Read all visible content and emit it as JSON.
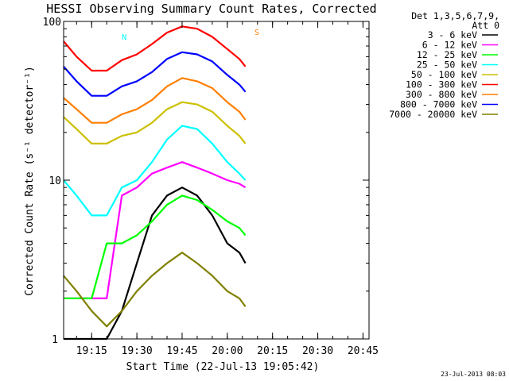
{
  "chart_data": {
    "type": "line",
    "title": "HESSI Observing Summary Count Rates, Corrected",
    "xlabel": "Start Time (22-Jul-13 19:05:42)",
    "ylabel": "Corrected Count Rate (s⁻¹ detector⁻¹)",
    "yscale": "log",
    "ylim": [
      1,
      100
    ],
    "y_ticks": [
      "1",
      "10",
      "100"
    ],
    "xlim": [
      "19:05:42",
      "20:47:00"
    ],
    "x_ticks": [
      "19:15",
      "19:30",
      "19:45",
      "20:00",
      "20:15",
      "20:30",
      "20:45"
    ],
    "legend_title": [
      "Det 1,3,5,6,7,9,",
      "Att 0"
    ],
    "legend_position": "right",
    "timestamp": "23-Jul-2013 08:03",
    "series": [
      {
        "name": "3 - 6 keV",
        "color": "#000000",
        "x": [
          "19:05:42",
          "19:10",
          "19:15",
          "19:20",
          "19:25",
          "19:30",
          "19:35",
          "19:40",
          "19:45",
          "19:50",
          "19:55",
          "20:00",
          "20:04",
          "20:06"
        ],
        "y": [
          1.0,
          1.0,
          1.0,
          1.0,
          1.5,
          3.0,
          6.0,
          8.0,
          9.0,
          8.0,
          6.0,
          4.0,
          3.5,
          3.0
        ]
      },
      {
        "name": "6 - 12 keV",
        "color": "#ff00ff",
        "x": [
          "19:05:42",
          "19:10",
          "19:15",
          "19:20",
          "19:25",
          "19:30",
          "19:35",
          "19:40",
          "19:45",
          "19:50",
          "19:55",
          "20:00",
          "20:04",
          "20:06"
        ],
        "y": [
          1.8,
          1.8,
          1.8,
          1.8,
          8.0,
          9.0,
          11.0,
          12.0,
          13.0,
          12.0,
          11.0,
          10.0,
          9.5,
          9.0
        ]
      },
      {
        "name": "12 - 25 keV",
        "color": "#00ff00",
        "x": [
          "19:05:42",
          "19:10",
          "19:15",
          "19:20",
          "19:25",
          "19:30",
          "19:35",
          "19:40",
          "19:45",
          "19:50",
          "19:55",
          "20:00",
          "20:04",
          "20:06"
        ],
        "y": [
          1.8,
          1.8,
          1.8,
          4.0,
          4.0,
          4.5,
          5.5,
          7.0,
          8.0,
          7.5,
          6.5,
          5.5,
          5.0,
          4.5
        ]
      },
      {
        "name": "25 - 50 keV",
        "color": "#00ffff",
        "x": [
          "19:05:42",
          "19:10",
          "19:15",
          "19:20",
          "19:25",
          "19:30",
          "19:35",
          "19:40",
          "19:45",
          "19:50",
          "19:55",
          "20:00",
          "20:04",
          "20:06"
        ],
        "y": [
          10.0,
          8.0,
          6.0,
          6.0,
          9.0,
          10.0,
          13.0,
          18.0,
          22.0,
          21.0,
          17.0,
          13.0,
          11.0,
          10.0
        ]
      },
      {
        "name": "50 - 100 keV",
        "color": "#ccc000",
        "x": [
          "19:05:42",
          "19:10",
          "19:15",
          "19:20",
          "19:25",
          "19:30",
          "19:35",
          "19:40",
          "19:45",
          "19:50",
          "19:55",
          "20:00",
          "20:04",
          "20:06"
        ],
        "y": [
          25.0,
          21.0,
          17.0,
          17.0,
          19.0,
          20.0,
          23.0,
          28.0,
          31.0,
          30.0,
          27.0,
          22.0,
          19.0,
          17.0
        ]
      },
      {
        "name": "100 - 300 keV",
        "color": "#ff0000",
        "x": [
          "19:05:42",
          "19:10",
          "19:15",
          "19:20",
          "19:25",
          "19:30",
          "19:35",
          "19:40",
          "19:45",
          "19:50",
          "19:55",
          "20:00",
          "20:04",
          "20:06"
        ],
        "y": [
          75.0,
          60.0,
          49.0,
          49.0,
          57.0,
          62.0,
          72.0,
          85.0,
          93.0,
          90.0,
          80.0,
          67.0,
          58.0,
          52.0
        ]
      },
      {
        "name": "300 - 800 keV",
        "color": "#ff7f00",
        "x": [
          "19:05:42",
          "19:10",
          "19:15",
          "19:20",
          "19:25",
          "19:30",
          "19:35",
          "19:40",
          "19:45",
          "19:50",
          "19:55",
          "20:00",
          "20:04",
          "20:06"
        ],
        "y": [
          33.0,
          28.0,
          23.0,
          23.0,
          26.0,
          28.0,
          32.0,
          39.0,
          44.0,
          42.0,
          38.0,
          31.0,
          27.0,
          24.0
        ]
      },
      {
        "name": "800 - 7000 keV",
        "color": "#0000ff",
        "x": [
          "19:05:42",
          "19:10",
          "19:15",
          "19:20",
          "19:25",
          "19:30",
          "19:35",
          "19:40",
          "19:45",
          "19:50",
          "19:55",
          "20:00",
          "20:04",
          "20:06"
        ],
        "y": [
          52.0,
          42.0,
          34.0,
          34.0,
          39.0,
          42.0,
          48.0,
          58.0,
          64.0,
          62.0,
          56.0,
          46.0,
          40.0,
          36.0
        ]
      },
      {
        "name": "7000 - 20000 keV",
        "color": "#808000",
        "x": [
          "19:05:42",
          "19:10",
          "19:15",
          "19:20",
          "19:25",
          "19:30",
          "19:35",
          "19:40",
          "19:45",
          "19:50",
          "19:55",
          "20:00",
          "20:04",
          "20:06"
        ],
        "y": [
          2.5,
          2.0,
          1.5,
          1.2,
          1.5,
          2.0,
          2.5,
          3.0,
          3.5,
          3.0,
          2.5,
          2.0,
          1.8,
          1.6
        ]
      }
    ],
    "annotations": [
      {
        "text": "N",
        "color": "#00ffff",
        "x": "19:25"
      },
      {
        "text": "S",
        "color": "#ff7f00",
        "x": "20:09"
      }
    ]
  }
}
